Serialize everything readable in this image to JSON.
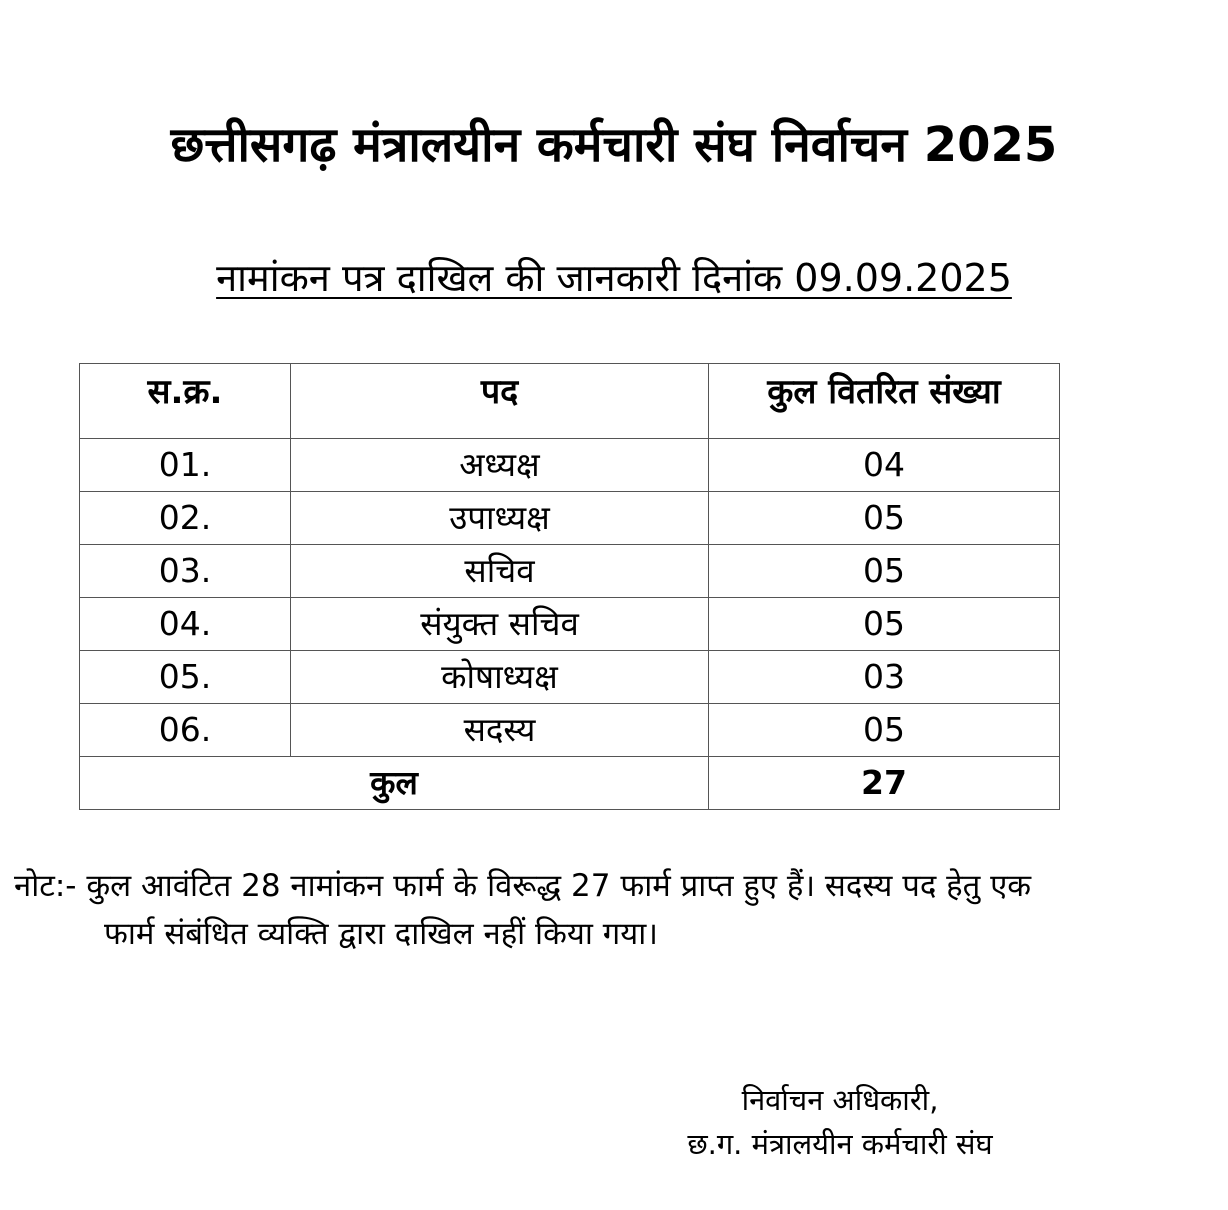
{
  "document": {
    "title": "छत्तीसगढ़ मंत्रालयीन कर्मचारी संघ निर्वाचन 2025",
    "subtitle": "नामांकन पत्र दाखिल की जानकारी दिनांक 09.09.2025"
  },
  "table": {
    "headers": [
      "स.क्र.",
      "पद",
      "कुल वितरित संख्या"
    ],
    "rows": [
      {
        "serial": "01.",
        "post": "अध्यक्ष",
        "count": "04"
      },
      {
        "serial": "02.",
        "post": "उपाध्यक्ष",
        "count": "05"
      },
      {
        "serial": "03.",
        "post": "सचिव",
        "count": "05"
      },
      {
        "serial": "04.",
        "post": "संयुक्त सचिव",
        "count": "05"
      },
      {
        "serial": "05.",
        "post": "कोषाध्यक्ष",
        "count": "03"
      },
      {
        "serial": "06.",
        "post": "सदस्य",
        "count": "05"
      }
    ],
    "total_label": "कुल",
    "total_value": "27"
  },
  "note": {
    "line1": "नोट:- कुल आवंटित 28 नामांकन फार्म के विरूद्ध 27 फार्म प्राप्त हुए हैं। सदस्य पद हेतु एक",
    "line2": "फार्म संबंधित व्यक्ति द्वारा दाखिल नहीं किया गया।"
  },
  "signature": {
    "line1": "निर्वाचन अधिकारी,",
    "line2": "छ.ग. मंत्रालयीन कर्मचारी संघ"
  }
}
